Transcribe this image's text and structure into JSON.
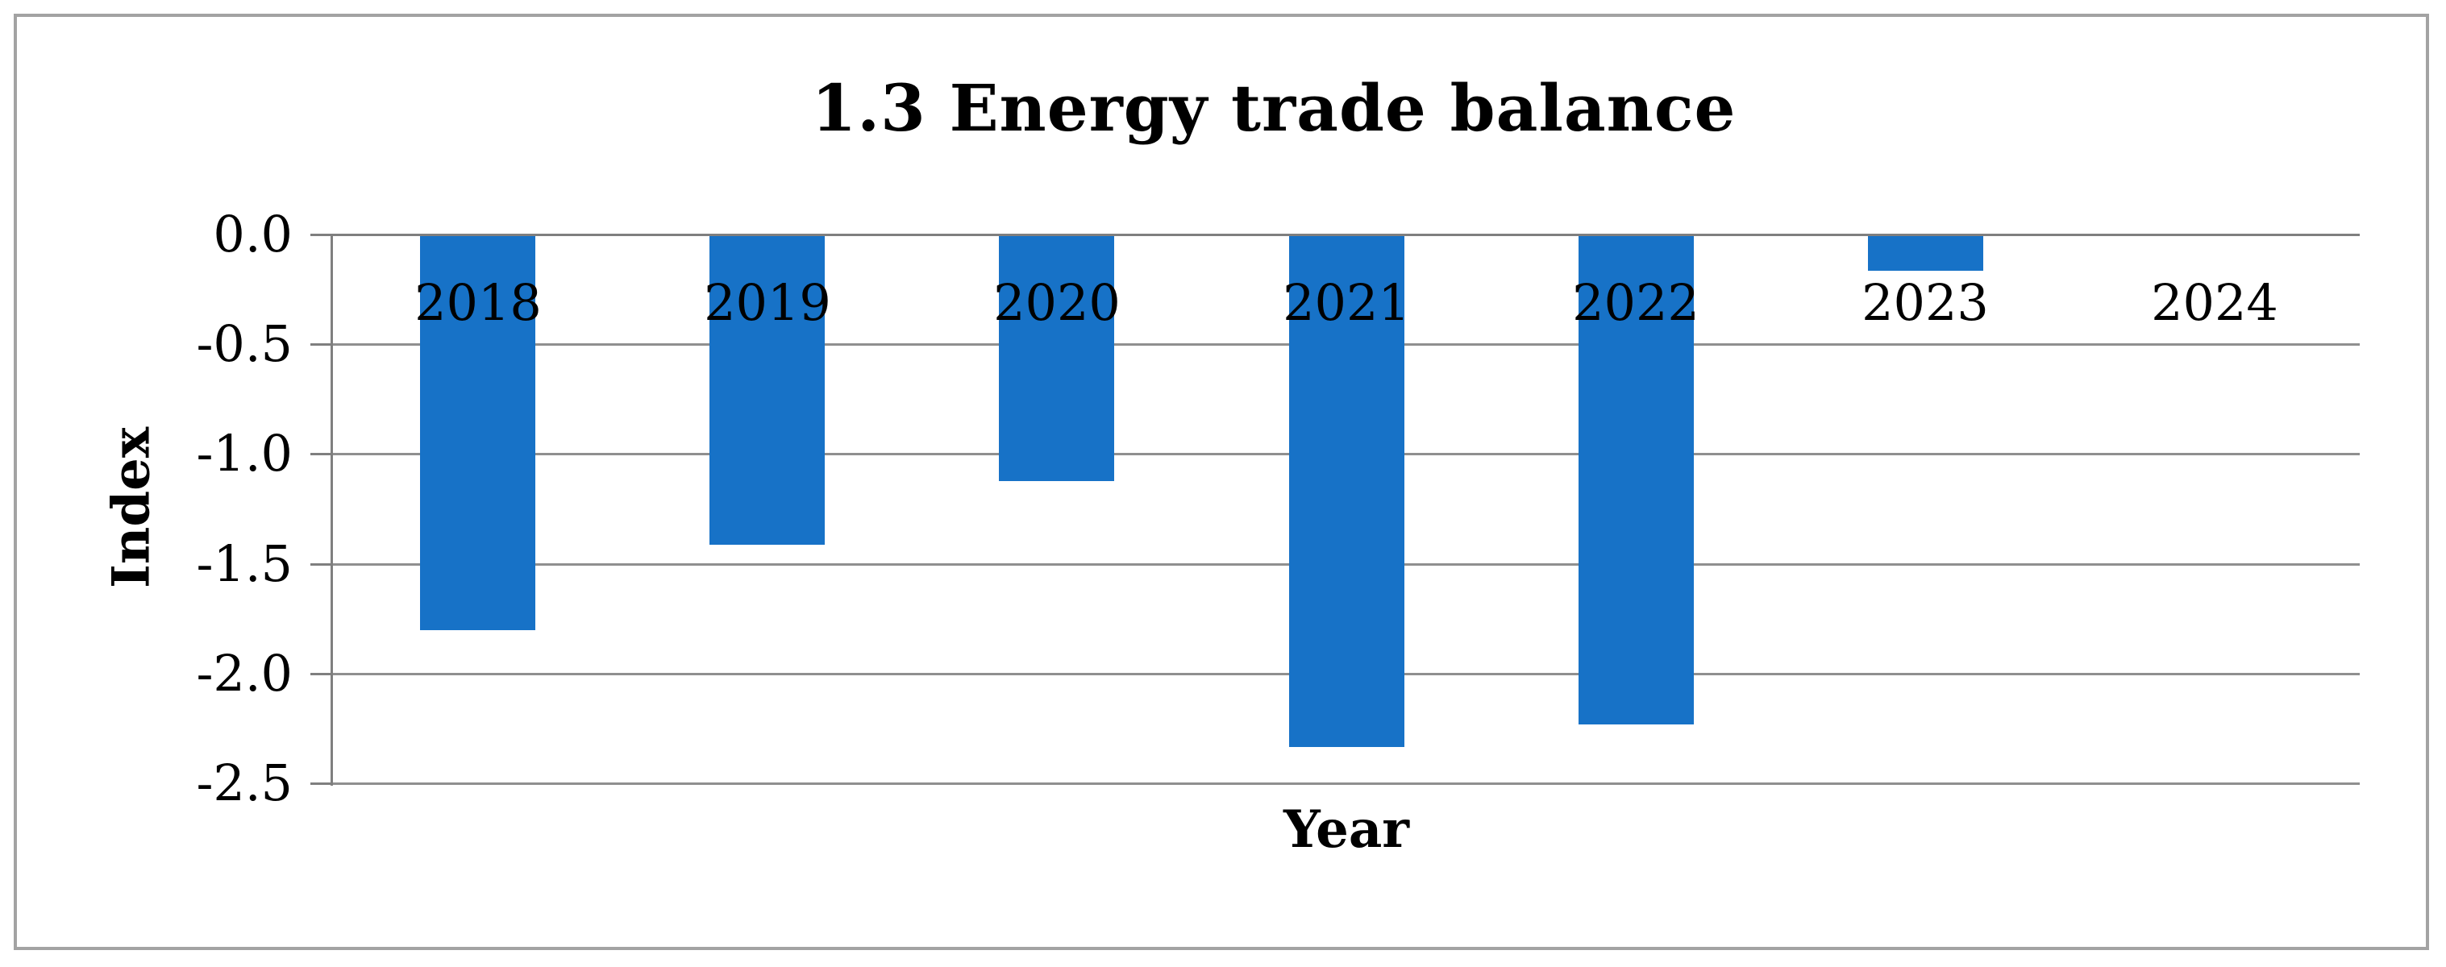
{
  "figure": {
    "background": "#FFFFFF",
    "border_color": "#A3A3A3"
  },
  "chart_data": {
    "type": "bar",
    "title": "1.3 Energy trade balance",
    "xlabel": "Year",
    "ylabel": "Index",
    "categories": [
      "2018",
      "2019",
      "2020",
      "2021",
      "2022",
      "2023",
      "2024"
    ],
    "values": [
      -1.8,
      -1.41,
      -1.12,
      -2.33,
      -2.23,
      -0.16,
      0.0
    ],
    "ylim": [
      -2.5,
      0
    ],
    "ytick_values": [
      0.0,
      -0.5,
      -1.0,
      -1.5,
      -2.0,
      -2.5
    ],
    "ytick_labels": [
      "0.0",
      "-0.5",
      "-1.0",
      "-1.5",
      "-2.0",
      "-2.5"
    ],
    "grid": true,
    "legend": "none",
    "category_label_position": "inside-below-zero-line",
    "bar_color": "#1772C7",
    "gridline_color": "#8F8F8F",
    "axis_color": "#7F7F7F",
    "text_color": "#000000"
  }
}
